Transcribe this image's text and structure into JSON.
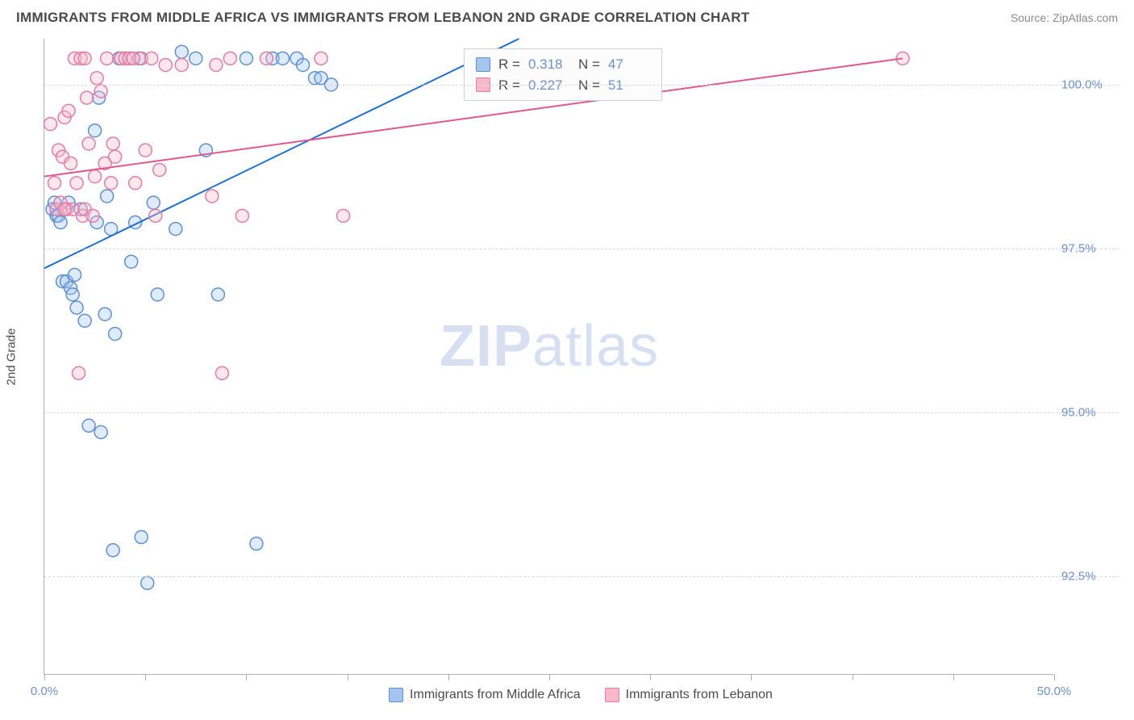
{
  "header": {
    "title": "IMMIGRANTS FROM MIDDLE AFRICA VS IMMIGRANTS FROM LEBANON 2ND GRADE CORRELATION CHART",
    "source_prefix": "Source: ",
    "source": "ZipAtlas.com"
  },
  "chart": {
    "type": "scatter",
    "y_axis_label": "2nd Grade",
    "xlim": [
      0,
      50
    ],
    "ylim": [
      91.0,
      100.7
    ],
    "x_ticks": [
      0,
      5,
      10,
      15,
      20,
      25,
      30,
      35,
      40,
      45,
      50
    ],
    "x_tick_labels": {
      "0": "0.0%",
      "50": "50.0%"
    },
    "y_ticks": [
      92.5,
      95.0,
      97.5,
      100.0
    ],
    "y_tick_labels": [
      "92.5%",
      "95.0%",
      "97.5%",
      "100.0%"
    ],
    "background_color": "#ffffff",
    "grid_color": "#d8d8d8",
    "axis_color": "#b0b0b0",
    "tick_label_color": "#6b8fd6",
    "marker_radius": 8,
    "marker_opacity": 0.35,
    "line_width": 2,
    "series": [
      {
        "key": "mid_africa",
        "label": "Immigrants from Middle Africa",
        "color_fill": "#a6c5ee",
        "color_stroke": "#5c90d6",
        "line_color": "#1a6fd6",
        "R": "0.318",
        "N": "47",
        "trend": {
          "x1": 0,
          "y1": 97.2,
          "x2": 23.5,
          "y2": 100.7
        },
        "points": [
          [
            0.4,
            98.1
          ],
          [
            0.5,
            98.2
          ],
          [
            0.6,
            98.0
          ],
          [
            0.7,
            98.0
          ],
          [
            0.8,
            97.9
          ],
          [
            0.9,
            97.0
          ],
          [
            1.0,
            98.1
          ],
          [
            1.1,
            97.0
          ],
          [
            1.2,
            98.2
          ],
          [
            1.3,
            96.9
          ],
          [
            1.4,
            96.8
          ],
          [
            1.5,
            97.1
          ],
          [
            1.6,
            96.6
          ],
          [
            1.8,
            98.1
          ],
          [
            2.0,
            96.4
          ],
          [
            2.2,
            94.8
          ],
          [
            2.5,
            99.3
          ],
          [
            2.6,
            97.9
          ],
          [
            2.7,
            99.8
          ],
          [
            2.8,
            94.7
          ],
          [
            3.0,
            96.5
          ],
          [
            3.1,
            98.3
          ],
          [
            3.3,
            97.8
          ],
          [
            3.4,
            92.9
          ],
          [
            3.5,
            96.2
          ],
          [
            3.7,
            100.4
          ],
          [
            4.3,
            97.3
          ],
          [
            4.5,
            97.9
          ],
          [
            4.7,
            100.4
          ],
          [
            4.8,
            93.1
          ],
          [
            5.1,
            92.4
          ],
          [
            5.4,
            98.2
          ],
          [
            5.6,
            96.8
          ],
          [
            6.5,
            97.8
          ],
          [
            7.5,
            100.4
          ],
          [
            8.0,
            99.0
          ],
          [
            8.6,
            96.8
          ],
          [
            10.0,
            100.4
          ],
          [
            10.5,
            93.0
          ],
          [
            11.3,
            100.4
          ],
          [
            11.8,
            100.4
          ],
          [
            12.5,
            100.4
          ],
          [
            12.8,
            100.3
          ],
          [
            13.4,
            100.1
          ],
          [
            13.7,
            100.1
          ],
          [
            6.8,
            100.5
          ],
          [
            14.2,
            100.0
          ]
        ]
      },
      {
        "key": "lebanon",
        "label": "Immigrants from Lebanon",
        "color_fill": "#f5b9cb",
        "color_stroke": "#e77aa0",
        "line_color": "#e15890",
        "R": "0.227",
        "N": "51",
        "trend": {
          "x1": 0,
          "y1": 98.6,
          "x2": 42.5,
          "y2": 100.4
        },
        "points": [
          [
            0.3,
            99.4
          ],
          [
            0.5,
            98.5
          ],
          [
            0.6,
            98.1
          ],
          [
            0.7,
            99.0
          ],
          [
            0.8,
            98.2
          ],
          [
            0.9,
            98.9
          ],
          [
            1.0,
            99.5
          ],
          [
            1.1,
            98.1
          ],
          [
            1.2,
            99.6
          ],
          [
            1.3,
            98.8
          ],
          [
            1.4,
            98.1
          ],
          [
            1.5,
            100.4
          ],
          [
            1.6,
            98.5
          ],
          [
            1.7,
            95.6
          ],
          [
            1.8,
            100.4
          ],
          [
            1.9,
            98.0
          ],
          [
            2.0,
            98.1
          ],
          [
            2.1,
            99.8
          ],
          [
            2.2,
            99.1
          ],
          [
            2.4,
            98.0
          ],
          [
            2.5,
            98.6
          ],
          [
            2.6,
            100.1
          ],
          [
            2.8,
            99.9
          ],
          [
            3.0,
            98.8
          ],
          [
            3.1,
            100.4
          ],
          [
            3.3,
            98.5
          ],
          [
            3.4,
            99.1
          ],
          [
            3.5,
            98.9
          ],
          [
            3.8,
            100.4
          ],
          [
            4.0,
            100.4
          ],
          [
            4.2,
            100.4
          ],
          [
            4.5,
            98.5
          ],
          [
            4.8,
            100.4
          ],
          [
            5.0,
            99.0
          ],
          [
            5.3,
            100.4
          ],
          [
            5.5,
            98.0
          ],
          [
            5.7,
            98.7
          ],
          [
            6.0,
            100.3
          ],
          [
            6.8,
            100.3
          ],
          [
            8.3,
            98.3
          ],
          [
            8.5,
            100.3
          ],
          [
            8.8,
            95.6
          ],
          [
            9.2,
            100.4
          ],
          [
            9.8,
            98.0
          ],
          [
            11.0,
            100.4
          ],
          [
            13.7,
            100.4
          ],
          [
            14.8,
            98.0
          ],
          [
            42.5,
            100.4
          ],
          [
            1.0,
            98.1
          ],
          [
            2.0,
            100.4
          ],
          [
            4.4,
            100.4
          ]
        ]
      }
    ]
  },
  "info_box": {
    "rows": [
      {
        "swatch_fill": "#a6c5ee",
        "swatch_stroke": "#5c90d6",
        "r_label": "R =",
        "r_val": "0.318",
        "n_label": "N =",
        "n_val": "47"
      },
      {
        "swatch_fill": "#f5b9cb",
        "swatch_stroke": "#e77aa0",
        "r_label": "R =",
        "r_val": "0.227",
        "n_label": "N =",
        "n_val": "51"
      }
    ]
  },
  "watermark": {
    "bold": "ZIP",
    "light": "atlas"
  }
}
